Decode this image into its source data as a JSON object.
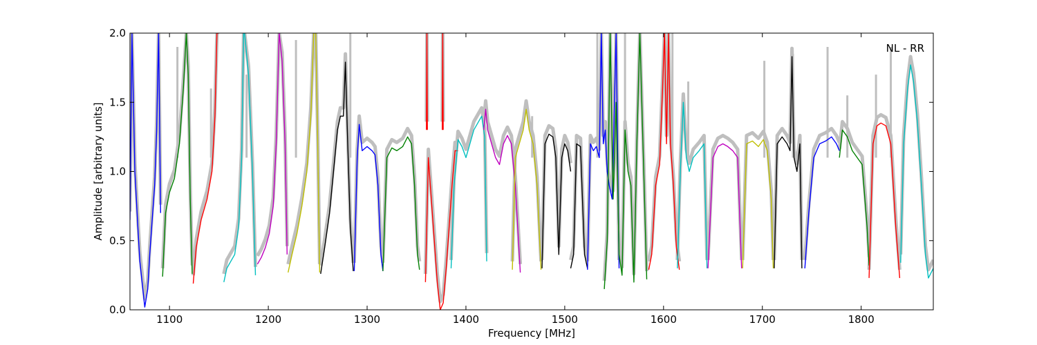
{
  "chart_data": {
    "type": "line",
    "title": "",
    "xlabel": "Frequency [MHz]",
    "ylabel": "Amplitude [arbitrary units]",
    "annotation": "NL - RR",
    "xlim": [
      1060,
      1873
    ],
    "ylim": [
      0.0,
      2.0
    ],
    "xticks": [
      1100,
      1200,
      1300,
      1400,
      1500,
      1600,
      1700,
      1800
    ],
    "xtick_labels": [
      "1100",
      "1200",
      "1300",
      "1400",
      "1500",
      "1600",
      "1700",
      "1800"
    ],
    "yticks": [
      0.0,
      0.5,
      1.0,
      1.5,
      2.0
    ],
    "ytick_labels": [
      "0.0",
      "0.5",
      "1.0",
      "1.5",
      "2.0"
    ],
    "grid": false,
    "reference_color": "#bfbfbf",
    "palette": [
      "#0000ff",
      "#008000",
      "#ff0000",
      "#00bfbf",
      "#bf00bf",
      "#bfbf00",
      "#000000"
    ],
    "series": [
      {
        "color": "#0000ff",
        "x": [
          1060,
          1062,
          1065,
          1068,
          1070,
          1073,
          1075,
          1078,
          1080,
          1082,
          1085,
          1087,
          1089,
          1091
        ],
        "y": [
          0.65,
          2.0,
          1.0,
          0.6,
          0.35,
          0.15,
          0.02,
          0.15,
          0.4,
          0.6,
          0.9,
          1.3,
          2.0,
          0.7
        ]
      },
      {
        "color": "#008000",
        "x": [
          1093,
          1096,
          1100,
          1105,
          1110,
          1114,
          1117,
          1119,
          1121,
          1123
        ],
        "y": [
          0.24,
          0.7,
          0.85,
          0.95,
          1.2,
          1.6,
          2.0,
          1.7,
          0.8,
          0.26
        ]
      },
      {
        "color": "#ff0000",
        "x": [
          1124,
          1127,
          1132,
          1138,
          1143,
          1146,
          1148,
          1150
        ],
        "y": [
          0.19,
          0.45,
          0.65,
          0.8,
          1.0,
          1.4,
          2.0,
          2.0
        ]
      },
      {
        "color": "#00bfbf",
        "x": [
          1155,
          1158,
          1162,
          1166,
          1170,
          1173,
          1175,
          1176,
          1180,
          1184,
          1187
        ],
        "y": [
          0.2,
          0.3,
          0.35,
          0.4,
          0.6,
          1.1,
          2.0,
          2.0,
          1.7,
          1.0,
          0.25
        ]
      },
      {
        "color": "#bf00bf",
        "x": [
          1189,
          1193,
          1197,
          1201,
          1205,
          1208,
          1211,
          1214,
          1217,
          1219
        ],
        "y": [
          0.33,
          0.38,
          0.45,
          0.55,
          0.75,
          1.2,
          2.0,
          1.8,
          1.2,
          0.4
        ]
      },
      {
        "color": "#bfbf00",
        "x": [
          1220,
          1224,
          1229,
          1234,
          1239,
          1243,
          1246,
          1248,
          1250,
          1252
        ],
        "y": [
          0.27,
          0.4,
          0.55,
          0.75,
          1.0,
          1.4,
          2.0,
          2.0,
          1.2,
          0.27
        ]
      },
      {
        "color": "#000000",
        "x": [
          1253,
          1257,
          1262,
          1266,
          1270,
          1273,
          1276,
          1278,
          1280,
          1283,
          1286
        ],
        "y": [
          0.26,
          0.45,
          0.7,
          1.0,
          1.3,
          1.4,
          1.4,
          1.79,
          1.3,
          0.6,
          0.28
        ]
      },
      {
        "color": "#0000ff",
        "x": [
          1287,
          1290,
          1292,
          1295,
          1300,
          1305,
          1308,
          1311,
          1314,
          1316
        ],
        "y": [
          0.28,
          1.1,
          1.34,
          1.15,
          1.18,
          1.15,
          1.12,
          0.9,
          0.4,
          0.28
        ]
      },
      {
        "color": "#008000",
        "x": [
          1316,
          1320,
          1325,
          1330,
          1336,
          1341,
          1345,
          1348,
          1351,
          1353
        ],
        "y": [
          0.28,
          1.1,
          1.17,
          1.15,
          1.18,
          1.25,
          1.2,
          0.9,
          0.4,
          0.29
        ]
      },
      {
        "color": "#ff0000",
        "x": [
          1359,
          1362,
          1365,
          1368,
          1371,
          1374,
          1377,
          1380,
          1383,
          1386,
          1389,
          1392
        ],
        "y": [
          0.2,
          1.1,
          0.8,
          0.5,
          0.2,
          0.0,
          0.05,
          0.3,
          0.6,
          0.9,
          1.15,
          1.15
        ]
      },
      {
        "color": "#ff0000",
        "x": [
          1360,
          1360.5,
          1361
        ],
        "y": [
          1.3,
          2.0,
          1.3
        ]
      },
      {
        "color": "#ff0000",
        "x": [
          1376,
          1376.5,
          1377
        ],
        "y": [
          1.3,
          2.0,
          1.3
        ]
      },
      {
        "color": "#00bfbf",
        "x": [
          1385,
          1388,
          1392,
          1396,
          1400,
          1404,
          1408,
          1412,
          1416,
          1419,
          1421
        ],
        "y": [
          0.3,
          0.9,
          1.23,
          1.18,
          1.1,
          1.2,
          1.3,
          1.35,
          1.4,
          1.25,
          0.35
        ]
      },
      {
        "color": "#bf00bf",
        "x": [
          1418,
          1420,
          1422,
          1426,
          1430,
          1434,
          1438,
          1442,
          1446,
          1450,
          1455
        ],
        "y": [
          1.3,
          1.45,
          1.3,
          1.2,
          1.1,
          1.05,
          1.2,
          1.26,
          1.2,
          0.9,
          0.27
        ]
      },
      {
        "color": "#bfbf00",
        "x": [
          1447,
          1450,
          1454,
          1458,
          1461,
          1464,
          1468,
          1472,
          1476
        ],
        "y": [
          0.29,
          1.1,
          1.2,
          1.3,
          1.45,
          1.3,
          1.2,
          0.9,
          0.29
        ]
      },
      {
        "color": "#000000",
        "x": [
          1477,
          1480,
          1484,
          1488,
          1491,
          1494,
          1497,
          1500,
          1503,
          1506
        ],
        "y": [
          0.3,
          1.2,
          1.27,
          1.25,
          1.1,
          0.4,
          1.1,
          1.2,
          1.15,
          1.0
        ]
      },
      {
        "color": "#000000",
        "x": [
          1506,
          1509,
          1512,
          1516,
          1520,
          1523
        ],
        "y": [
          0.3,
          0.4,
          1.2,
          1.18,
          0.4,
          0.3
        ]
      },
      {
        "color": "#0000ff",
        "x": [
          1523,
          1526,
          1529,
          1532,
          1535,
          1537,
          1539,
          1541,
          1543,
          1545,
          1548,
          1552,
          1555
        ],
        "y": [
          0.29,
          1.2,
          1.15,
          1.18,
          1.1,
          2.0,
          1.2,
          1.3,
          1.0,
          0.9,
          0.8,
          2.0,
          0.3
        ]
      },
      {
        "color": "#008000",
        "x": [
          1540,
          1543,
          1546,
          1549,
          1552,
          1555,
          1558,
          1561,
          1564,
          1567,
          1570,
          1573,
          1576,
          1580,
          1583
        ],
        "y": [
          0.15,
          0.5,
          2.0,
          0.8,
          1.5,
          0.4,
          0.25,
          1.3,
          1.0,
          0.9,
          0.2,
          1.2,
          2.0,
          1.0,
          0.22
        ]
      },
      {
        "color": "#ff0000",
        "x": [
          1585,
          1588,
          1592,
          1596,
          1599,
          1601,
          1603,
          1605,
          1607,
          1610,
          1613,
          1616
        ],
        "y": [
          0.29,
          0.4,
          0.9,
          1.05,
          1.6,
          2.0,
          1.2,
          2.0,
          1.2,
          0.9,
          0.45,
          0.29
        ]
      },
      {
        "color": "#00bfbf",
        "x": [
          1614,
          1617,
          1620,
          1623,
          1626,
          1630,
          1636,
          1641,
          1644
        ],
        "y": [
          0.3,
          1.0,
          1.5,
          1.1,
          1.0,
          1.1,
          1.15,
          1.2,
          0.3
        ]
      },
      {
        "color": "#bf00bf",
        "x": [
          1645,
          1650,
          1655,
          1660,
          1665,
          1670,
          1675,
          1679
        ],
        "y": [
          0.3,
          1.1,
          1.18,
          1.2,
          1.18,
          1.15,
          1.1,
          0.3
        ]
      },
      {
        "color": "#bfbf00",
        "x": [
          1680,
          1684,
          1690,
          1696,
          1701,
          1705,
          1709,
          1711
        ],
        "y": [
          0.3,
          1.2,
          1.22,
          1.18,
          1.23,
          1.15,
          0.8,
          0.3
        ]
      },
      {
        "color": "#000000",
        "x": [
          1712,
          1715,
          1720,
          1725,
          1728,
          1730,
          1732,
          1735,
          1738,
          1740
        ],
        "y": [
          0.3,
          1.2,
          1.25,
          1.2,
          1.15,
          1.83,
          1.1,
          1.0,
          1.2,
          0.3
        ]
      },
      {
        "color": "#0000ff",
        "x": [
          1743,
          1747,
          1752,
          1758,
          1764,
          1770,
          1775,
          1778
        ],
        "y": [
          0.3,
          0.7,
          1.1,
          1.2,
          1.22,
          1.25,
          1.2,
          1.15
        ]
      },
      {
        "color": "#008000",
        "x": [
          1778,
          1781,
          1786,
          1791,
          1796,
          1801,
          1806,
          1808
        ],
        "y": [
          1.1,
          1.3,
          1.25,
          1.15,
          1.1,
          1.05,
          0.6,
          0.32
        ]
      },
      {
        "color": "#ff0000",
        "x": [
          1808,
          1812,
          1816,
          1820,
          1825,
          1830,
          1835,
          1839
        ],
        "y": [
          0.23,
          1.2,
          1.33,
          1.35,
          1.33,
          1.2,
          0.6,
          0.23
        ]
      },
      {
        "color": "#00bfbf",
        "x": [
          1840,
          1843,
          1847,
          1850,
          1853,
          1857,
          1861,
          1865,
          1868,
          1873
        ],
        "y": [
          0.34,
          1.2,
          1.6,
          1.77,
          1.65,
          1.35,
          0.9,
          0.4,
          0.23,
          0.3
        ]
      }
    ],
    "reference_spikes": [
      {
        "x": 1108,
        "y": 1.9
      },
      {
        "x": 1142,
        "y": 1.6
      },
      {
        "x": 1178,
        "y": 1.7
      },
      {
        "x": 1228,
        "y": 1.95
      },
      {
        "x": 1283,
        "y": 2.0
      },
      {
        "x": 1467,
        "y": 1.4
      },
      {
        "x": 1533,
        "y": 2.0
      },
      {
        "x": 1561,
        "y": 2.0
      },
      {
        "x": 1609,
        "y": 2.0
      },
      {
        "x": 1625,
        "y": 1.65
      },
      {
        "x": 1702,
        "y": 1.8
      },
      {
        "x": 1731,
        "y": 1.85
      },
      {
        "x": 1766,
        "y": 1.9
      },
      {
        "x": 1786,
        "y": 1.55
      },
      {
        "x": 1815,
        "y": 1.7
      },
      {
        "x": 1830,
        "y": 1.9
      }
    ]
  }
}
